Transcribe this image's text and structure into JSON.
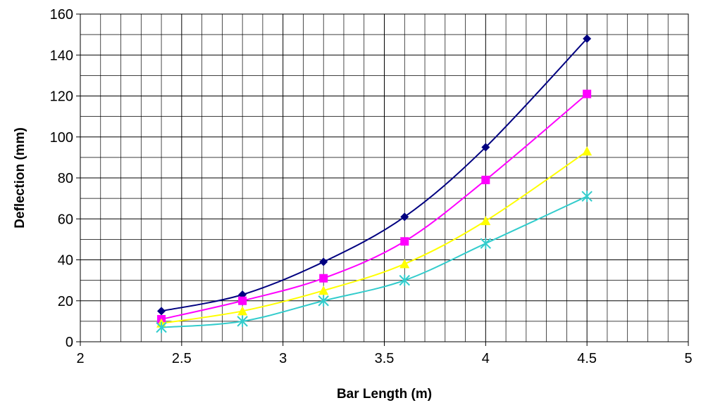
{
  "chart_data": {
    "type": "scatter",
    "title": "",
    "xlabel": "Bar Length (m)",
    "ylabel": "Deflection (mm)",
    "xlim": [
      2,
      5
    ],
    "ylim": [
      0,
      160
    ],
    "x_ticks": [
      "2",
      "2.5",
      "3",
      "3.5",
      "4",
      "4.5",
      "5"
    ],
    "y_ticks": [
      "0",
      "20",
      "40",
      "60",
      "80",
      "100",
      "120",
      "140",
      "160"
    ],
    "grid": true,
    "legend": "none",
    "line_style": "smoothed lines with markers",
    "series": [
      {
        "marker": "diamond",
        "color": "#000080",
        "x": [
          2.4,
          2.8,
          3.2,
          3.6,
          4.0,
          4.5
        ],
        "y": [
          15,
          23,
          39,
          61,
          95,
          148
        ]
      },
      {
        "marker": "square",
        "color": "#FF00FF",
        "x": [
          2.4,
          2.8,
          3.2,
          3.6,
          4.0,
          4.5
        ],
        "y": [
          11,
          20,
          31,
          49,
          79,
          121
        ]
      },
      {
        "marker": "triangle",
        "color": "#FFFF00",
        "x": [
          2.4,
          2.8,
          3.2,
          3.6,
          4.0,
          4.5
        ],
        "y": [
          9,
          15,
          25,
          38,
          59,
          93
        ]
      },
      {
        "marker": "asterisk",
        "color": "#33CCCC",
        "x": [
          2.4,
          2.8,
          3.2,
          3.6,
          4.0,
          4.5
        ],
        "y": [
          7,
          10,
          20,
          30,
          48,
          71
        ]
      }
    ]
  }
}
